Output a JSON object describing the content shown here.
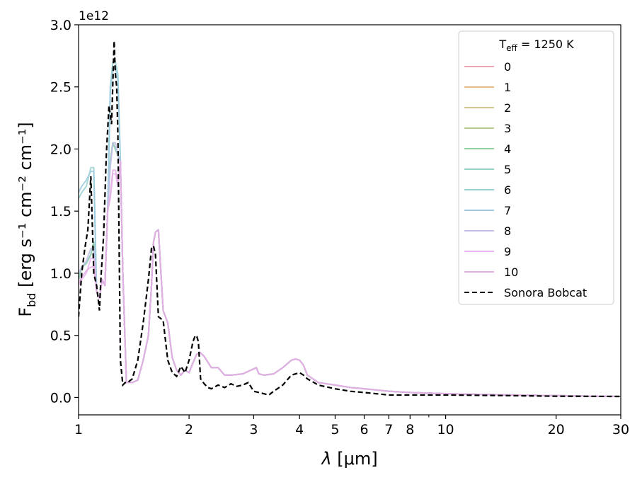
{
  "chart_data": {
    "type": "line",
    "x_scale": "log",
    "xlim": [
      1,
      30
    ],
    "ylim": [
      -0.14,
      3.0
    ],
    "y_offset_label": "1e12",
    "xlabel_var": "λ",
    "xlabel_unit": "[μm]",
    "ylabel_main": "F",
    "ylabel_sub": "bd",
    "ylabel_units": "[erg s⁻¹ cm⁻² cm⁻¹]",
    "x_ticks": [
      1,
      2,
      3,
      4,
      5,
      6,
      7,
      8,
      10,
      20,
      30
    ],
    "x_tick_labels": [
      "1",
      "2",
      "3",
      "4",
      "5",
      "6",
      "7",
      "8",
      "10",
      "20",
      "30"
    ],
    "y_ticks": [
      0.0,
      0.5,
      1.0,
      1.5,
      2.0,
      2.5,
      3.0
    ],
    "y_tick_labels": [
      "0.0",
      "0.5",
      "1.0",
      "1.5",
      "2.0",
      "2.5",
      "3.0"
    ],
    "legend": {
      "title_main": "T",
      "title_sub": "eff",
      "title_rest": " = 1250 K",
      "position": "top-right"
    },
    "series": [
      {
        "name": "0",
        "color": "#f0a3b3"
      },
      {
        "name": "1",
        "color": "#e5b98a"
      },
      {
        "name": "2",
        "color": "#d2c68d"
      },
      {
        "name": "3",
        "color": "#bacb8f"
      },
      {
        "name": "4",
        "color": "#93d1a0"
      },
      {
        "name": "5",
        "color": "#96d2c4"
      },
      {
        "name": "6",
        "color": "#99d0d1"
      },
      {
        "name": "7",
        "color": "#9ccbe0"
      },
      {
        "name": "8",
        "color": "#c3bdea"
      },
      {
        "name": "9",
        "color": "#e9b5ee"
      },
      {
        "name": "10",
        "color": "#e2aee0"
      },
      {
        "name": "Sonora Bobcat",
        "color": "#000000",
        "dashed": true
      }
    ],
    "model_profile": {
      "x": [
        1.0,
        1.02,
        1.05,
        1.08,
        1.1,
        1.12,
        1.14,
        1.16,
        1.18,
        1.2,
        1.22,
        1.24,
        1.26,
        1.28,
        1.3,
        1.32,
        1.35,
        1.4,
        1.45,
        1.5,
        1.55,
        1.58,
        1.6,
        1.62,
        1.65,
        1.7,
        1.75,
        1.8,
        1.85,
        1.9,
        1.95,
        2.0,
        2.05,
        2.1,
        2.15,
        2.2,
        2.3,
        2.4,
        2.5,
        2.6,
        2.8,
        3.0,
        3.05,
        3.1,
        3.2,
        3.4,
        3.6,
        3.8,
        3.9,
        4.0,
        4.1,
        4.2,
        4.5,
        5.0,
        5.5,
        6.0,
        7.0,
        8.0,
        10.0,
        15.0,
        20.0,
        25.0,
        30.0
      ],
      "y": [
        0.95,
        1.05,
        1.08,
        1.15,
        1.25,
        0.85,
        0.8,
        0.95,
        0.9,
        1.5,
        1.9,
        2.05,
        2.0,
        1.95,
        1.9,
        1.0,
        0.12,
        0.12,
        0.14,
        0.3,
        0.5,
        0.9,
        1.25,
        1.33,
        1.35,
        0.7,
        0.6,
        0.32,
        0.22,
        0.18,
        0.22,
        0.2,
        0.28,
        0.35,
        0.36,
        0.33,
        0.24,
        0.24,
        0.18,
        0.18,
        0.19,
        0.23,
        0.24,
        0.19,
        0.18,
        0.19,
        0.24,
        0.3,
        0.31,
        0.3,
        0.26,
        0.18,
        0.12,
        0.1,
        0.08,
        0.07,
        0.05,
        0.04,
        0.03,
        0.02,
        0.015,
        0.01,
        0.008
      ]
    },
    "model_variants": [
      {
        "index": 6,
        "peak_1_08": 1.85,
        "peak_1_26": 2.7,
        "start": 1.6
      },
      {
        "index": 7,
        "peak_1_08": 1.82,
        "peak_1_26": 2.65,
        "start": 1.65
      },
      {
        "index": 9,
        "peak_1_08": 1.12,
        "peak_1_26": 1.8,
        "start": 0.9
      },
      {
        "index": 10,
        "peak_1_08": 1.05,
        "peak_1_26": 1.83,
        "start": 0.92
      },
      {
        "index": 8,
        "peak_1_08": 1.2,
        "peak_1_26": 2.05,
        "start": 1.0
      }
    ],
    "sonora": {
      "x": [
        1.0,
        1.02,
        1.04,
        1.06,
        1.08,
        1.09,
        1.1,
        1.12,
        1.14,
        1.15,
        1.17,
        1.19,
        1.21,
        1.23,
        1.25,
        1.26,
        1.27,
        1.28,
        1.29,
        1.3,
        1.32,
        1.34,
        1.36,
        1.4,
        1.45,
        1.5,
        1.55,
        1.58,
        1.6,
        1.62,
        1.65,
        1.7,
        1.75,
        1.8,
        1.85,
        1.9,
        1.95,
        2.0,
        2.05,
        2.08,
        2.1,
        2.12,
        2.15,
        2.2,
        2.25,
        2.3,
        2.4,
        2.5,
        2.6,
        2.7,
        2.8,
        2.9,
        3.0,
        3.1,
        3.2,
        3.3,
        3.4,
        3.6,
        3.8,
        4.0,
        4.1,
        4.2,
        4.5,
        5.0,
        5.5,
        6.0,
        7.0,
        8.0,
        10.0,
        15.0,
        20.0,
        30.0
      ],
      "y": [
        0.65,
        1.0,
        1.2,
        1.35,
        1.78,
        1.4,
        1.0,
        0.9,
        0.7,
        0.95,
        1.3,
        1.95,
        2.35,
        2.2,
        2.87,
        2.6,
        2.5,
        2.1,
        1.2,
        0.3,
        0.1,
        0.12,
        0.12,
        0.15,
        0.3,
        0.6,
        0.95,
        1.2,
        1.22,
        1.15,
        0.65,
        0.62,
        0.3,
        0.2,
        0.17,
        0.25,
        0.2,
        0.3,
        0.45,
        0.5,
        0.49,
        0.45,
        0.15,
        0.11,
        0.08,
        0.07,
        0.1,
        0.08,
        0.11,
        0.09,
        0.1,
        0.12,
        0.05,
        0.04,
        0.03,
        0.02,
        0.05,
        0.1,
        0.18,
        0.2,
        0.18,
        0.15,
        0.1,
        0.07,
        0.05,
        0.04,
        0.02,
        0.02,
        0.02,
        0.015,
        0.01,
        0.008
      ]
    }
  }
}
